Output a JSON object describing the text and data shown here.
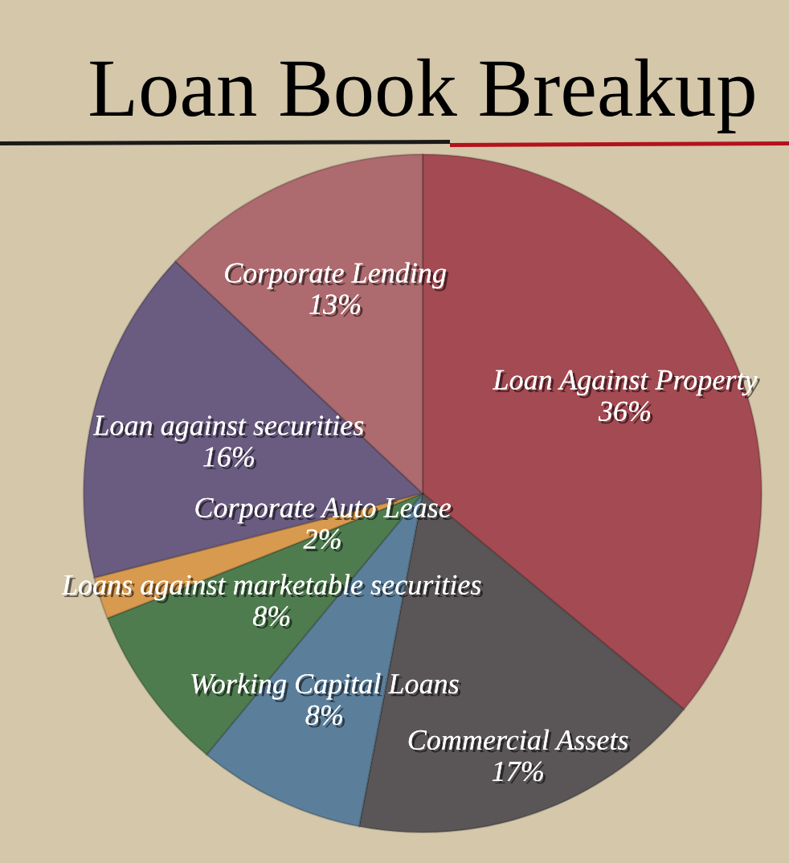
{
  "chart_data": {
    "type": "pie",
    "title": "Loan Book Breakup",
    "categories": [
      "Loan Against Property",
      "Commercial Assets",
      "Working Capital Loans",
      "Loans against marketable securities",
      "Corporate Auto Lease",
      "Loan against securities",
      "Corporate Lending"
    ],
    "values": [
      36,
      17,
      8,
      8,
      2,
      16,
      13
    ],
    "colors": [
      "#a34a52",
      "#5a5657",
      "#5b7f9b",
      "#4f7c4f",
      "#d89a4f",
      "#6a5b80",
      "#ad6a6f"
    ],
    "value_labels": [
      "36%",
      "17%",
      "8%",
      "8%",
      "2%",
      "16%",
      "13%"
    ]
  }
}
